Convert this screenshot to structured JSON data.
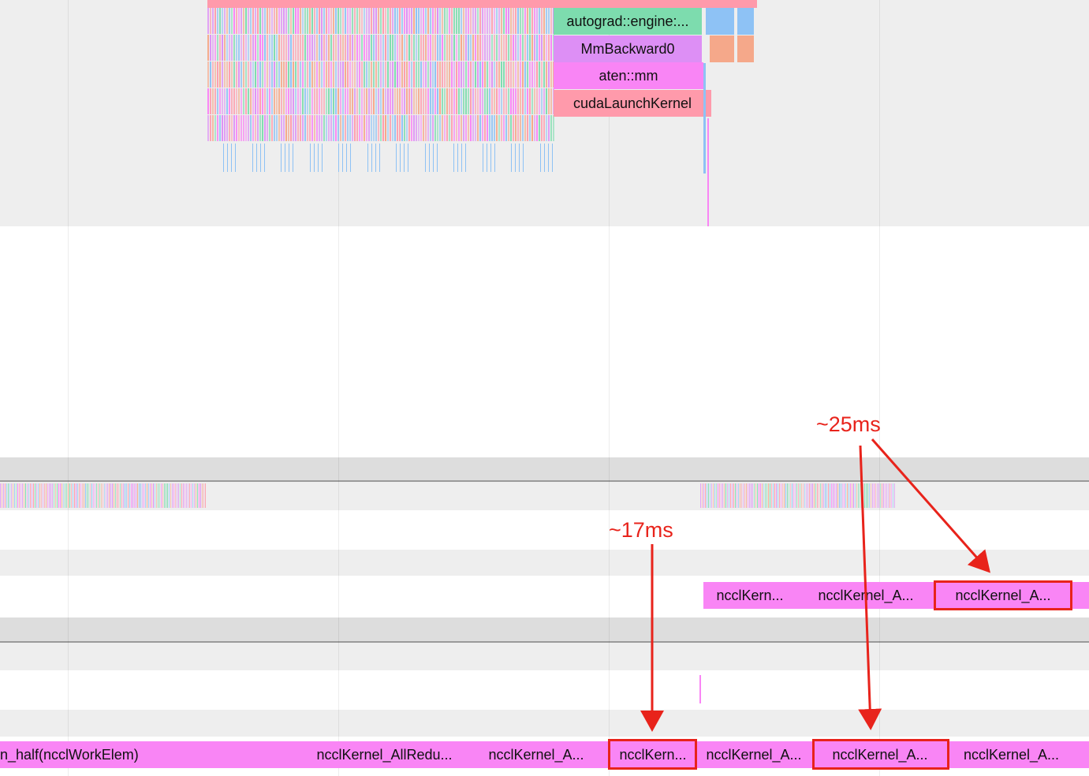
{
  "colors": {
    "pink": "#ff9aab",
    "green": "#7ddcae",
    "violet": "#dd8ff5",
    "magenta": "#f985f5",
    "highlight": "#e8231b",
    "blue": "#8ec2f5",
    "salmon": "#f5a88a"
  },
  "cpu_stack": {
    "autograd": "autograd::engine:...",
    "mm_backward": "MmBackward0",
    "aten_mm": "aten::mm",
    "cuda_launch": "cudaLaunchKernel"
  },
  "stream_a": {
    "k1": "ncclKern...",
    "k2": "ncclKernel_A...",
    "k3": "ncclKernel_A..."
  },
  "stream_b": {
    "k1": "n_half(ncclWorkElem)",
    "k2": "ncclKernel_AllRedu...",
    "k3": "ncclKernel_A...",
    "k4": "ncclKern...",
    "k5": "ncclKernel_A...",
    "k6": "ncclKernel_A...",
    "k7": "ncclKernel_A..."
  },
  "annotations": {
    "note_17": "~17ms",
    "note_25": "~25ms"
  }
}
